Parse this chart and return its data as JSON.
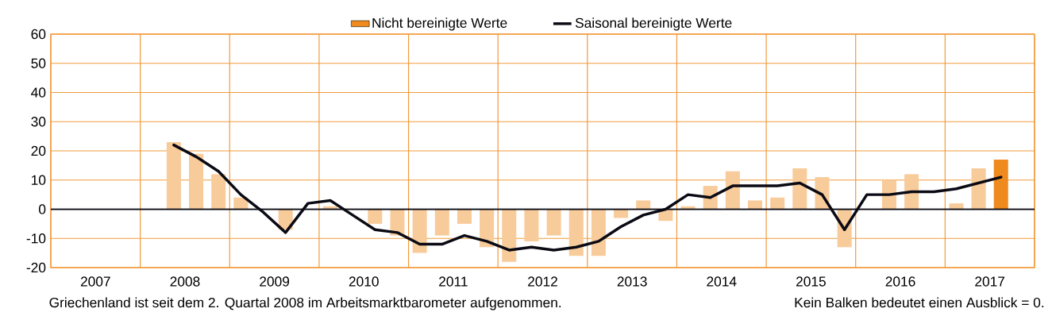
{
  "chart_data": {
    "type": "bar",
    "x": [
      2008.375,
      2008.625,
      2008.875,
      2009.125,
      2009.375,
      2009.625,
      2009.875,
      2010.125,
      2010.375,
      2010.625,
      2010.875,
      2011.125,
      2011.375,
      2011.625,
      2011.875,
      2012.125,
      2012.375,
      2012.625,
      2012.875,
      2013.125,
      2013.375,
      2013.625,
      2013.875,
      2014.125,
      2014.375,
      2014.625,
      2014.875,
      2015.125,
      2015.375,
      2015.625,
      2015.875,
      2016.125,
      2016.375,
      2016.625,
      2016.875,
      2017.125,
      2017.375,
      2017.625
    ],
    "series": [
      {
        "name": "Nicht bereinigte Werte",
        "color": "#ee8a1e",
        "values": [
          23,
          19,
          12,
          4,
          0,
          -7,
          0,
          1,
          0,
          -5,
          -9,
          -15,
          -9,
          -5,
          -13,
          -18,
          -11,
          -9,
          -16,
          -16,
          -3,
          3,
          -4,
          1,
          8,
          13,
          3,
          4,
          14,
          11,
          -13,
          0,
          10,
          12,
          0,
          2,
          14,
          17
        ],
        "colors": [
          "#f8cb9a",
          "#f8cb9a",
          "#f8cb9a",
          "#f8cb9a",
          "#f8cb9a",
          "#f8cb9a",
          "#f8cb9a",
          "#f8cb9a",
          "#f8cb9a",
          "#f8cb9a",
          "#f8cb9a",
          "#f8cb9a",
          "#f8cb9a",
          "#f8cb9a",
          "#f8cb9a",
          "#f8cb9a",
          "#f8cb9a",
          "#f8cb9a",
          "#f8cb9a",
          "#f8cb9a",
          "#f8cb9a",
          "#f8cb9a",
          "#f8cb9a",
          "#f8cb9a",
          "#f8cb9a",
          "#f8cb9a",
          "#f8cb9a",
          "#f8cb9a",
          "#f8cb9a",
          "#f8cb9a",
          "#f8cb9a",
          "#f8cb9a",
          "#f8cb9a",
          "#f8cb9a",
          "#f8cb9a",
          "#f8cb9a",
          "#f8cb9a",
          "#ee8a1e"
        ]
      },
      {
        "name": "Saisonal bereinigte Werte",
        "type": "line",
        "color": "#0a0a14",
        "values": [
          22,
          18,
          13,
          5,
          -1,
          -8,
          2,
          3,
          -2,
          -7,
          -8,
          -12,
          -12,
          -9,
          -11,
          -14,
          -13,
          -14,
          -13,
          -11,
          -6,
          -2,
          0,
          5,
          4,
          8,
          8,
          8,
          9,
          5,
          -7,
          5,
          5,
          6,
          6,
          7,
          9,
          11
        ]
      }
    ],
    "xlim": [
      2007,
      2018
    ],
    "xticks": [
      {
        "value": 2007,
        "label": null
      },
      {
        "value": 2007.5,
        "label": "2007"
      },
      {
        "value": 2008,
        "label": null
      },
      {
        "value": 2008.5,
        "label": "2008"
      },
      {
        "value": 2009,
        "label": null
      },
      {
        "value": 2009.5,
        "label": "2009"
      },
      {
        "value": 2010,
        "label": null
      },
      {
        "value": 2010.5,
        "label": "2010"
      },
      {
        "value": 2011,
        "label": null
      },
      {
        "value": 2011.5,
        "label": "2011"
      },
      {
        "value": 2012,
        "label": null
      },
      {
        "value": 2012.5,
        "label": "2012"
      },
      {
        "value": 2013,
        "label": null
      },
      {
        "value": 2013.5,
        "label": "2013"
      },
      {
        "value": 2014,
        "label": null
      },
      {
        "value": 2014.5,
        "label": "2014"
      },
      {
        "value": 2015,
        "label": null
      },
      {
        "value": 2015.5,
        "label": "2015"
      },
      {
        "value": 2016,
        "label": null
      },
      {
        "value": 2016.5,
        "label": "2016"
      },
      {
        "value": 2017,
        "label": null
      },
      {
        "value": 2017.5,
        "label": "2017"
      },
      {
        "value": 2018,
        "label": null
      }
    ],
    "ylim": [
      -20,
      60
    ],
    "yticks": [
      -20,
      -10,
      0,
      10,
      20,
      30,
      40,
      50,
      60
    ],
    "grid": true,
    "legend": "top",
    "ref_lines": [
      {
        "axis": "y",
        "value": 0,
        "color": "#0a0a14"
      }
    ],
    "annotations": [
      "Griechenland ist seit dem 2. Quartal 2008 im Arbeitsmarktbarometer aufgenommen.",
      "Kein Balken bedeutet einen Ausblick = 0."
    ]
  }
}
